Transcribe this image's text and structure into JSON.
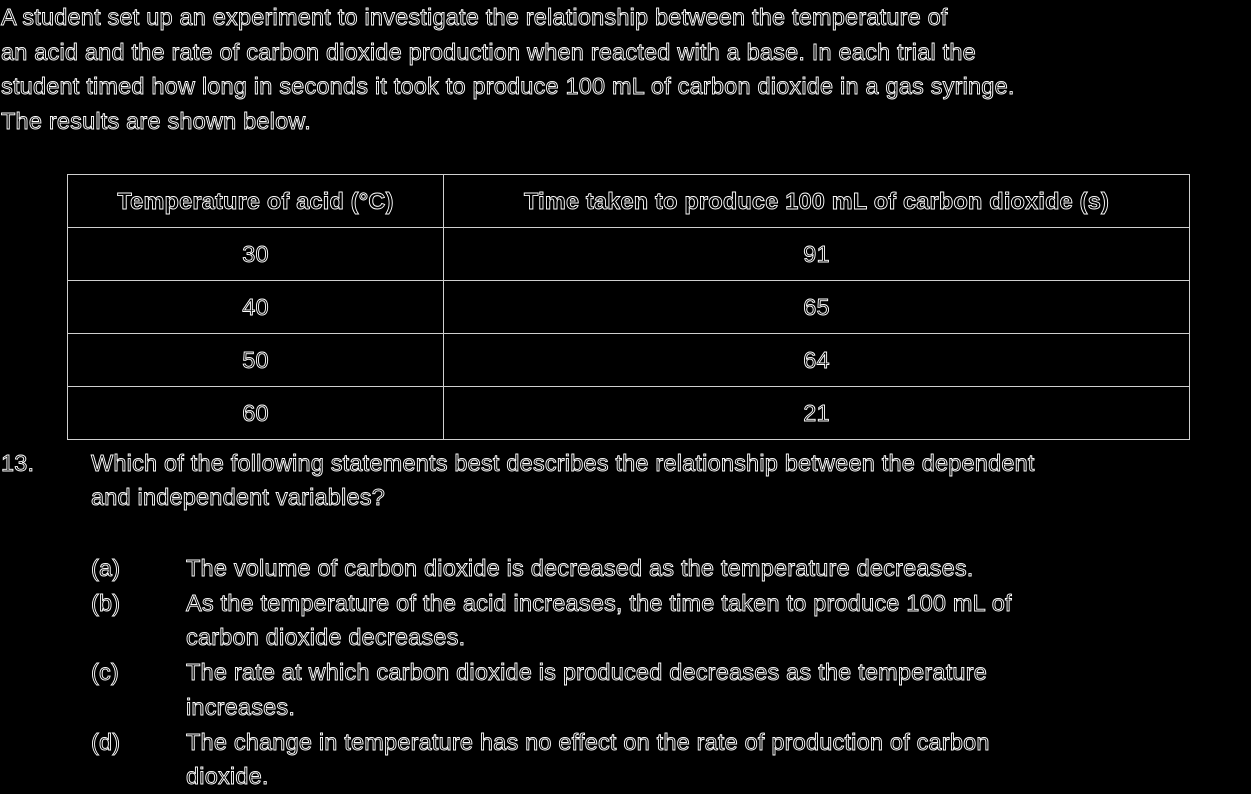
{
  "intro": {
    "lines": [
      "A student set up an experiment to investigate the relationship between the temperature of",
      "an acid and the rate of carbon dioxide production when reacted with a base. In each trial the",
      "student timed how long in seconds it took to produce 100 mL of carbon dioxide in a gas syringe.",
      "The results are shown below."
    ]
  },
  "table": {
    "headers": [
      "Temperature of acid (°C)",
      "Time taken to produce 100 mL of carbon dioxide (s)"
    ],
    "rows": [
      [
        "30",
        "91"
      ],
      [
        "40",
        "65"
      ],
      [
        "50",
        "64"
      ],
      [
        "60",
        "21"
      ]
    ]
  },
  "question": {
    "number": "13.",
    "lines": [
      "Which of the following statements best describes the relationship between the dependent",
      "and independent variables?"
    ]
  },
  "options": [
    {
      "label": "(a)",
      "lines": [
        "The volume of carbon dioxide is decreased as the temperature decreases."
      ]
    },
    {
      "label": "(b)",
      "lines": [
        "As the temperature of the acid increases, the time taken to produce 100 mL of",
        "carbon dioxide decreases."
      ]
    },
    {
      "label": "(c)",
      "lines": [
        "The rate at which carbon dioxide is produced decreases as the temperature",
        "increases."
      ]
    },
    {
      "label": "(d)",
      "lines": [
        "The change in temperature has no effect on the rate of production of carbon",
        "dioxide."
      ]
    }
  ]
}
